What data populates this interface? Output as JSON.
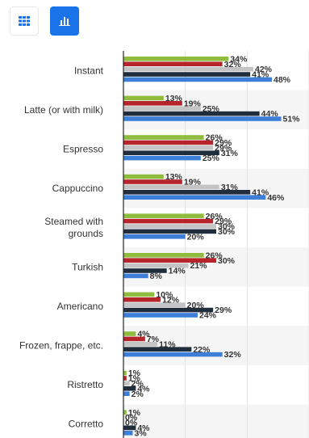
{
  "toolbar": {
    "buttons": [
      {
        "icon": "table-grid-icon",
        "active": false
      },
      {
        "icon": "bar-chart-icon",
        "active": true
      }
    ]
  },
  "chart_data": {
    "type": "bar",
    "orientation": "horizontal",
    "categories": [
      [
        "Instant"
      ],
      [
        "Latte (or with milk)"
      ],
      [
        "Espresso"
      ],
      [
        "Cappuccino"
      ],
      [
        "Steamed with",
        "grounds"
      ],
      [
        "Turkish"
      ],
      [
        "Americano"
      ],
      [
        "Frozen, frappe, etc."
      ],
      [
        "Ristretto"
      ],
      [
        "Corretto"
      ]
    ],
    "series": [
      {
        "color": "#8fbc3f",
        "values": [
          34,
          13,
          26,
          13,
          26,
          26,
          10,
          4,
          1,
          1
        ]
      },
      {
        "color": "#b5252b",
        "values": [
          32,
          19,
          29,
          19,
          29,
          30,
          12,
          7,
          1,
          0
        ]
      },
      {
        "color": "#c4c4c4",
        "values": [
          42,
          25,
          29,
          31,
          30,
          21,
          20,
          11,
          2,
          0
        ]
      },
      {
        "color": "#1f2d3d",
        "values": [
          41,
          44,
          31,
          41,
          30,
          14,
          29,
          22,
          4,
          4
        ]
      },
      {
        "color": "#3d7fd8",
        "values": [
          48,
          51,
          25,
          46,
          20,
          8,
          24,
          32,
          2,
          3
        ]
      }
    ],
    "value_suffix": "%",
    "xlim": [
      0,
      60
    ],
    "gridlines": [
      20,
      40,
      60
    ],
    "grid": true,
    "legend": "none"
  }
}
